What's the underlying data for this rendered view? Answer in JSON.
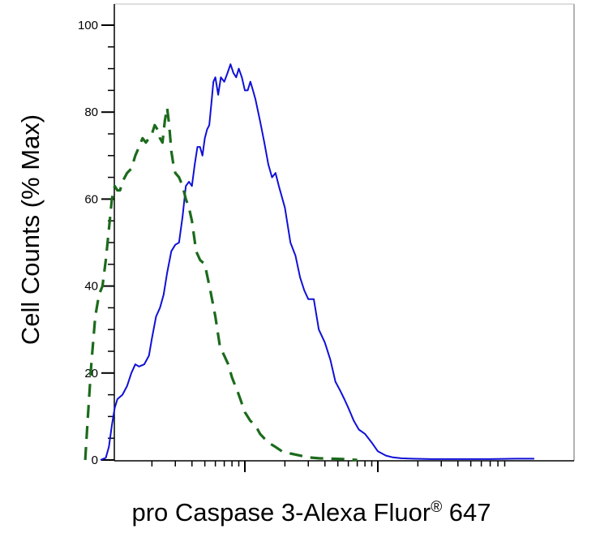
{
  "chart_data": {
    "type": "line",
    "title": "",
    "xlabel": "pro Caspase 3-Alexa Fluor",
    "xlabel_mark": "®",
    "xlabel_suffix": " 647",
    "ylabel": "Cell Counts (% Max)",
    "x_scale": "log",
    "x_tick_labels": [],
    "ylim": [
      0,
      100
    ],
    "y_ticks": [
      0,
      20,
      40,
      60,
      80,
      100
    ],
    "grid": false,
    "legend": "none",
    "series": [
      {
        "style": "solid",
        "color": "#1010d8",
        "points": [
          [
            0.82,
            0
          ],
          [
            0.9,
            0.5
          ],
          [
            0.95,
            3
          ],
          [
            1.0,
            8
          ],
          [
            1.05,
            12
          ],
          [
            1.1,
            14
          ],
          [
            1.2,
            15
          ],
          [
            1.3,
            17
          ],
          [
            1.4,
            20
          ],
          [
            1.5,
            22
          ],
          [
            1.6,
            21.5
          ],
          [
            1.75,
            22
          ],
          [
            1.9,
            24
          ],
          [
            2.0,
            28
          ],
          [
            2.15,
            33
          ],
          [
            2.3,
            35
          ],
          [
            2.45,
            38
          ],
          [
            2.6,
            43
          ],
          [
            2.8,
            48
          ],
          [
            3.0,
            49.5
          ],
          [
            3.2,
            50
          ],
          [
            3.4,
            56
          ],
          [
            3.6,
            63
          ],
          [
            3.8,
            64
          ],
          [
            4.0,
            63
          ],
          [
            4.2,
            68
          ],
          [
            4.4,
            72
          ],
          [
            4.6,
            72
          ],
          [
            4.8,
            70
          ],
          [
            5.0,
            74
          ],
          [
            5.2,
            76
          ],
          [
            5.4,
            77
          ],
          [
            5.6,
            82
          ],
          [
            5.8,
            87
          ],
          [
            6.0,
            88
          ],
          [
            6.3,
            84
          ],
          [
            6.6,
            88
          ],
          [
            7.0,
            87
          ],
          [
            7.4,
            89
          ],
          [
            7.8,
            91
          ],
          [
            8.2,
            89
          ],
          [
            8.6,
            88
          ],
          [
            9.0,
            90
          ],
          [
            9.5,
            88
          ],
          [
            10.0,
            85
          ],
          [
            10.5,
            85
          ],
          [
            11.0,
            87
          ],
          [
            11.5,
            85
          ],
          [
            12.0,
            83
          ],
          [
            13.0,
            78
          ],
          [
            14.0,
            73
          ],
          [
            15.0,
            68
          ],
          [
            16.0,
            65
          ],
          [
            17.0,
            66
          ],
          [
            18.0,
            63
          ],
          [
            20.0,
            58
          ],
          [
            22.0,
            50
          ],
          [
            24.0,
            47
          ],
          [
            26.0,
            42
          ],
          [
            28.0,
            39
          ],
          [
            30.0,
            37
          ],
          [
            33.0,
            37
          ],
          [
            36.0,
            30
          ],
          [
            40.0,
            27
          ],
          [
            44.0,
            23
          ],
          [
            48.0,
            18
          ],
          [
            52.0,
            16
          ],
          [
            56.0,
            14
          ],
          [
            60.0,
            12
          ],
          [
            66.0,
            9
          ],
          [
            72.0,
            7
          ],
          [
            80.0,
            6
          ],
          [
            90.0,
            4
          ],
          [
            100.0,
            2
          ],
          [
            115.0,
            1
          ],
          [
            130.0,
            0.6
          ],
          [
            150.0,
            0.4
          ],
          [
            180.0,
            0.3
          ],
          [
            250.0,
            0.2
          ],
          [
            400.0,
            0.2
          ],
          [
            700.0,
            0.2
          ],
          [
            1100.0,
            0.3
          ],
          [
            1500.0,
            0.3
          ]
        ]
      },
      {
        "style": "dashed",
        "color": "#1b6b1b",
        "points": [
          [
            0.63,
            0
          ],
          [
            0.66,
            10
          ],
          [
            0.7,
            22
          ],
          [
            0.75,
            33
          ],
          [
            0.8,
            38
          ],
          [
            0.85,
            40
          ],
          [
            0.9,
            46
          ],
          [
            0.95,
            53
          ],
          [
            1.0,
            60
          ],
          [
            1.05,
            63
          ],
          [
            1.1,
            62
          ],
          [
            1.15,
            62
          ],
          [
            1.2,
            64
          ],
          [
            1.3,
            66
          ],
          [
            1.4,
            67
          ],
          [
            1.5,
            70
          ],
          [
            1.6,
            72
          ],
          [
            1.7,
            74
          ],
          [
            1.8,
            73
          ],
          [
            1.9,
            74
          ],
          [
            2.0,
            75
          ],
          [
            2.1,
            77
          ],
          [
            2.2,
            76
          ],
          [
            2.3,
            74
          ],
          [
            2.4,
            73
          ],
          [
            2.5,
            78
          ],
          [
            2.6,
            81
          ],
          [
            2.7,
            77
          ],
          [
            2.8,
            71
          ],
          [
            2.9,
            68
          ],
          [
            3.0,
            66
          ],
          [
            3.2,
            65
          ],
          [
            3.4,
            63
          ],
          [
            3.6,
            60
          ],
          [
            3.8,
            58
          ],
          [
            4.0,
            55
          ],
          [
            4.3,
            48
          ],
          [
            4.6,
            46
          ],
          [
            5.0,
            45
          ],
          [
            5.5,
            39
          ],
          [
            6.0,
            33
          ],
          [
            6.5,
            26
          ],
          [
            7.0,
            24
          ],
          [
            7.5,
            22
          ],
          [
            8.0,
            19
          ],
          [
            9.0,
            15
          ],
          [
            10.0,
            11
          ],
          [
            11.0,
            9
          ],
          [
            12.0,
            8
          ],
          [
            13.0,
            6
          ],
          [
            15.0,
            4
          ],
          [
            17.0,
            3
          ],
          [
            19.0,
            2
          ],
          [
            22.0,
            1.5
          ],
          [
            26.0,
            1
          ],
          [
            30.0,
            0.6
          ],
          [
            36.0,
            0.4
          ],
          [
            45.0,
            0.3
          ],
          [
            55.0,
            0.2
          ],
          [
            70.0,
            0
          ]
        ]
      }
    ]
  }
}
